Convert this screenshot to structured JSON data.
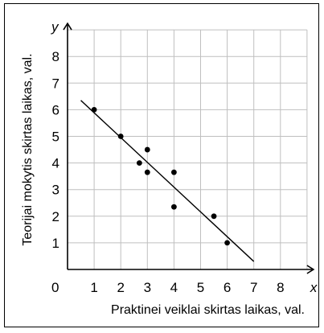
{
  "chart_data": {
    "type": "scatter",
    "title": "",
    "xlabel": "Praktinei veiklai skirtas laikas, val.",
    "ylabel": "Teorijai mokytis skirtas laikas, val.",
    "x_axis_letter": "x",
    "y_axis_letter": "y",
    "origin_label": "0",
    "xlim": [
      0,
      9
    ],
    "ylim": [
      0,
      9
    ],
    "x_ticks": [
      1,
      2,
      3,
      4,
      5,
      6,
      7,
      8
    ],
    "y_ticks": [
      1,
      2,
      3,
      4,
      5,
      6,
      7,
      8
    ],
    "grid": true,
    "points": [
      {
        "x": 1,
        "y": 6
      },
      {
        "x": 2,
        "y": 5
      },
      {
        "x": 2.7,
        "y": 4
      },
      {
        "x": 3,
        "y": 4.5
      },
      {
        "x": 3,
        "y": 3.65
      },
      {
        "x": 4,
        "y": 3.65
      },
      {
        "x": 4,
        "y": 2.35
      },
      {
        "x": 5.5,
        "y": 2
      },
      {
        "x": 6,
        "y": 1
      }
    ],
    "trend_line": {
      "x1": 0.5,
      "y1": 6.35,
      "x2": 7,
      "y2": 0.3
    },
    "colors": {
      "points": "#000000",
      "line": "#000000",
      "grid": "#bfbfbf",
      "axes": "#000000"
    }
  }
}
